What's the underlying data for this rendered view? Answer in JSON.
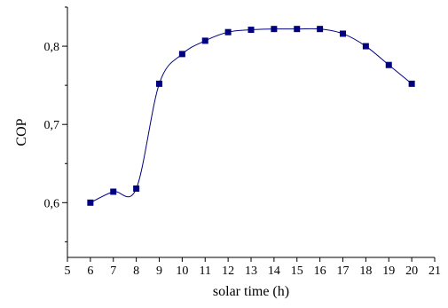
{
  "chart_data": {
    "type": "line",
    "title": "",
    "xlabel": "solar time (h)",
    "ylabel": "COP",
    "xlim": [
      5,
      21
    ],
    "ylim": [
      0.53,
      0.85
    ],
    "x_ticks": [
      "5",
      "6",
      "7",
      "8",
      "9",
      "10",
      "11",
      "12",
      "13",
      "14",
      "15",
      "16",
      "17",
      "18",
      "19",
      "20",
      "21"
    ],
    "y_ticks": [
      "0,6",
      "0,7",
      "0,8"
    ],
    "y_tick_values": [
      0.6,
      0.7,
      0.8
    ],
    "grid": false,
    "legend": "none",
    "series": [
      {
        "x": [
          6,
          7,
          8,
          9,
          10,
          11,
          12,
          13,
          14,
          15,
          16,
          17,
          18,
          19,
          20
        ],
        "values": [
          0.6,
          0.614,
          0.618,
          0.752,
          0.79,
          0.807,
          0.818,
          0.821,
          0.822,
          0.822,
          0.822,
          0.816,
          0.8,
          0.776,
          0.752
        ],
        "color": "#000080",
        "marker": "square"
      }
    ]
  }
}
